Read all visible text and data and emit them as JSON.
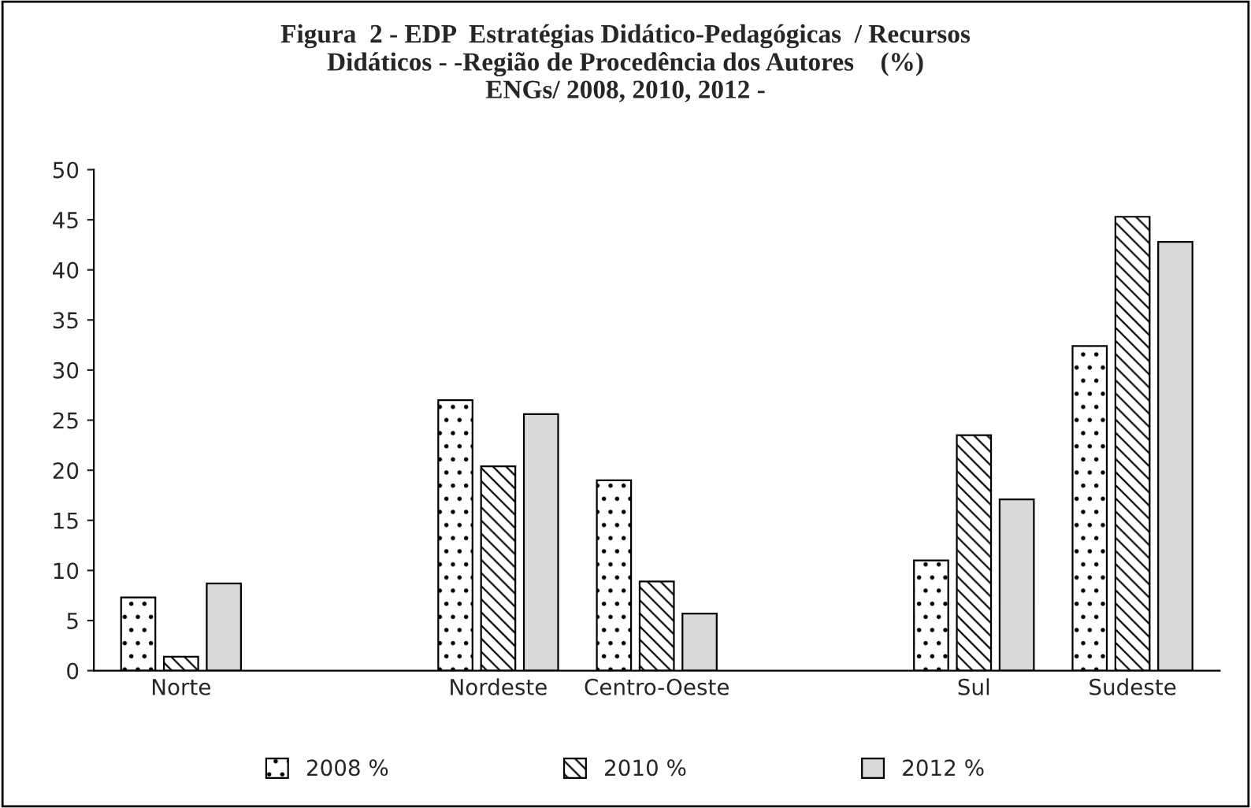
{
  "chart_data": {
    "type": "bar",
    "title": "Figura  2 - EDP  Estratégias Didático-Pedagógicas  / Recursos\nDidáticos - -Região de Procedência dos Autores    (%)\nENGs/ 2008, 2010, 2012 -",
    "categories": [
      "Norte",
      null,
      "Nordeste",
      "Centro-Oeste",
      null,
      "Sul",
      "Sudeste"
    ],
    "series": [
      {
        "name": "2008 %",
        "color": "#000000",
        "values": [
          7.3,
          null,
          27,
          19,
          null,
          11,
          32.4
        ]
      },
      {
        "name": "2010 %",
        "color": "#000000",
        "values": [
          1.4,
          null,
          20.4,
          8.9,
          null,
          23.5,
          45.3
        ]
      },
      {
        "name": "2012 %",
        "color": "#d9d9d9",
        "values": [
          8.7,
          null,
          25.6,
          5.7,
          null,
          17.1,
          42.8
        ]
      }
    ],
    "ylim": [
      0,
      50
    ],
    "yticks": [
      0,
      5,
      10,
      15,
      20,
      25,
      30,
      35,
      40,
      45,
      50
    ],
    "grid": false,
    "legend": "bottom"
  }
}
